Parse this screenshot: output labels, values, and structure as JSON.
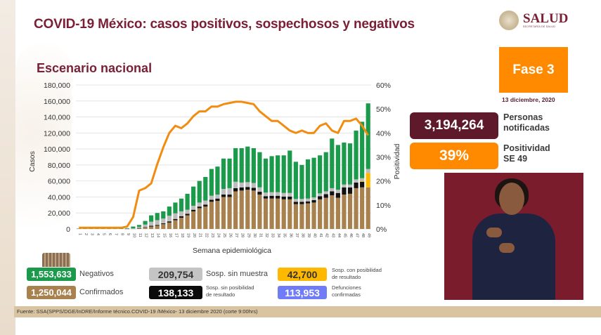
{
  "title": "COVID-19 México: casos positivos, sospechosos y negativos",
  "subtitle": "Escenario nacional",
  "logo": {
    "text": "SALUD",
    "sub": "SECRETARÍA DE SALUD"
  },
  "fase": "Fase 3",
  "date": "13 diciembre, 2020",
  "kpis": {
    "notificadas_value": "3,194,264",
    "notificadas_label1": "Personas",
    "notificadas_label2": "notificadas",
    "positividad_value": "39%",
    "positividad_label1": "Positividad",
    "positividad_label2": "SE 49"
  },
  "legend": {
    "negativos_value": "1,553,633",
    "negativos_label": "Negativos",
    "sin_muestra_value": "209,754",
    "sin_muestra_label": "Sosp. sin muestra",
    "con_posibilidad_value": "42,700",
    "con_posibilidad_label1": "Sosp. con posibilidad",
    "con_posibilidad_label2": "de resultado",
    "confirmados_value": "1,250,044",
    "confirmados_label": "Confirmados",
    "sin_posibilidad_value": "138,133",
    "sin_posibilidad_label1": "Sosp. sin posibilidad",
    "sin_posibilidad_label2": "de resultado",
    "defunciones_value": "113,953",
    "defunciones_label1": "Defunciones",
    "defunciones_label2": "confirmadas"
  },
  "footer": "Fuente: SSA(SPPS/DGE/InDRE/Informe técnico.COVID-19 /México- 13 diciembre 2020 (corte 9:00hrs)",
  "colors": {
    "maroon": "#7a1f35",
    "orange": "#ff8a00",
    "confirmados": "#a8814f",
    "sin_posibilidad": "#111111",
    "con_posibilidad": "#ffb800",
    "sin_muestra": "#bdbdbd",
    "negativos": "#1a9a4a",
    "defunciones": "#6f7bf7",
    "line": "#f28c10"
  },
  "chart_data": {
    "type": "bar",
    "stacked": true,
    "xlabel": "Semana epidemiológica",
    "ylabel": "Casos",
    "y2label": "Positividad",
    "ylim": [
      0,
      180000
    ],
    "y2lim": [
      0,
      60
    ],
    "yticks": [
      "0",
      "20,000",
      "40,000",
      "60,000",
      "80,000",
      "100,000",
      "120,000",
      "140,000",
      "160,000",
      "180,000"
    ],
    "y2ticks": [
      "0%",
      "10%",
      "20%",
      "30%",
      "40%",
      "50%",
      "60%"
    ],
    "grid": true,
    "categories": [
      "1",
      "2",
      "3",
      "4",
      "5",
      "6",
      "7",
      "8",
      "9",
      "10",
      "11",
      "12",
      "13",
      "14",
      "15",
      "16",
      "17",
      "18",
      "19",
      "20",
      "21",
      "22",
      "23",
      "24",
      "25",
      "26",
      "27",
      "28",
      "29",
      "30",
      "31",
      "32",
      "33",
      "34",
      "35",
      "36",
      "37",
      "38",
      "39",
      "40",
      "41",
      "42",
      "43",
      "44",
      "45",
      "46",
      "47",
      "48",
      "49"
    ],
    "series": [
      {
        "key": "confirmados",
        "values": [
          0,
          0,
          0,
          0,
          0,
          0,
          0,
          0,
          100,
          300,
          1000,
          2000,
          3000,
          4000,
          6000,
          8000,
          11000,
          14000,
          17000,
          22000,
          26000,
          28000,
          34000,
          35000,
          40000,
          40000,
          47000,
          48000,
          49000,
          48000,
          43000,
          38000,
          38000,
          38000,
          37000,
          37000,
          31000,
          31000,
          32000,
          33000,
          37000,
          39000,
          42000,
          39000,
          43000,
          44000,
          51000,
          52000,
          52000
        ]
      },
      {
        "key": "sin_posibilidad",
        "values": [
          0,
          0,
          0,
          0,
          0,
          0,
          0,
          0,
          0,
          0,
          200,
          500,
          1000,
          1000,
          1000,
          1500,
          1500,
          2000,
          2000,
          2000,
          2000,
          2500,
          2500,
          3000,
          3000,
          3000,
          4000,
          4000,
          3500,
          3500,
          3500,
          3000,
          3500,
          3500,
          3500,
          3500,
          3000,
          3000,
          2500,
          3000,
          4000,
          4500,
          5000,
          6000,
          9000,
          8000,
          7000,
          7000,
          0
        ]
      },
      {
        "key": "con_posibilidad",
        "values": [
          0,
          0,
          0,
          0,
          0,
          0,
          0,
          0,
          0,
          0,
          0,
          0,
          0,
          0,
          0,
          0,
          0,
          0,
          0,
          0,
          0,
          0,
          0,
          0,
          0,
          0,
          0,
          0,
          0,
          0,
          0,
          0,
          0,
          0,
          0,
          0,
          0,
          0,
          0,
          0,
          0,
          0,
          0,
          0,
          0,
          0,
          0,
          1000,
          18000
        ]
      },
      {
        "key": "sin_muestra",
        "values": [
          0,
          0,
          0,
          0,
          0,
          0,
          0,
          0,
          200,
          500,
          1500,
          3000,
          5000,
          6000,
          6000,
          7000,
          7000,
          6000,
          5000,
          5000,
          5000,
          5000,
          5000,
          5000,
          7000,
          8000,
          8000,
          6000,
          6000,
          6000,
          5500,
          4500,
          4500,
          4500,
          4500,
          4500,
          3500,
          3500,
          3500,
          3500,
          3500,
          3500,
          4000,
          4000,
          3500,
          3500,
          4000,
          3500,
          5000
        ]
      },
      {
        "key": "negativos",
        "values": [
          500,
          500,
          2000,
          2000,
          2000,
          2000,
          2000,
          2000,
          700,
          2200,
          2300,
          4500,
          8000,
          9000,
          9000,
          11500,
          13500,
          16000,
          20000,
          24000,
          27000,
          29500,
          33500,
          35000,
          38000,
          37000,
          42000,
          43000,
          44500,
          43500,
          44000,
          42500,
          45000,
          46000,
          47000,
          53000,
          46500,
          42500,
          49000,
          49500,
          47500,
          49000,
          62000,
          56000,
          52500,
          51500,
          61000,
          70500,
          82000
        ]
      }
    ],
    "line": {
      "name": "Positividad",
      "values": [
        0.5,
        0.5,
        0.5,
        0.5,
        0.5,
        0.5,
        0.5,
        0.5,
        1,
        5,
        16,
        17,
        19,
        27,
        34,
        40,
        43,
        42,
        44,
        47,
        49,
        49,
        51,
        51,
        52,
        52.5,
        53,
        53,
        52.5,
        52,
        49,
        47,
        45,
        45,
        43,
        41,
        40,
        41,
        40,
        40,
        43,
        44,
        41,
        40,
        45,
        45,
        46,
        43,
        39
      ]
    }
  }
}
